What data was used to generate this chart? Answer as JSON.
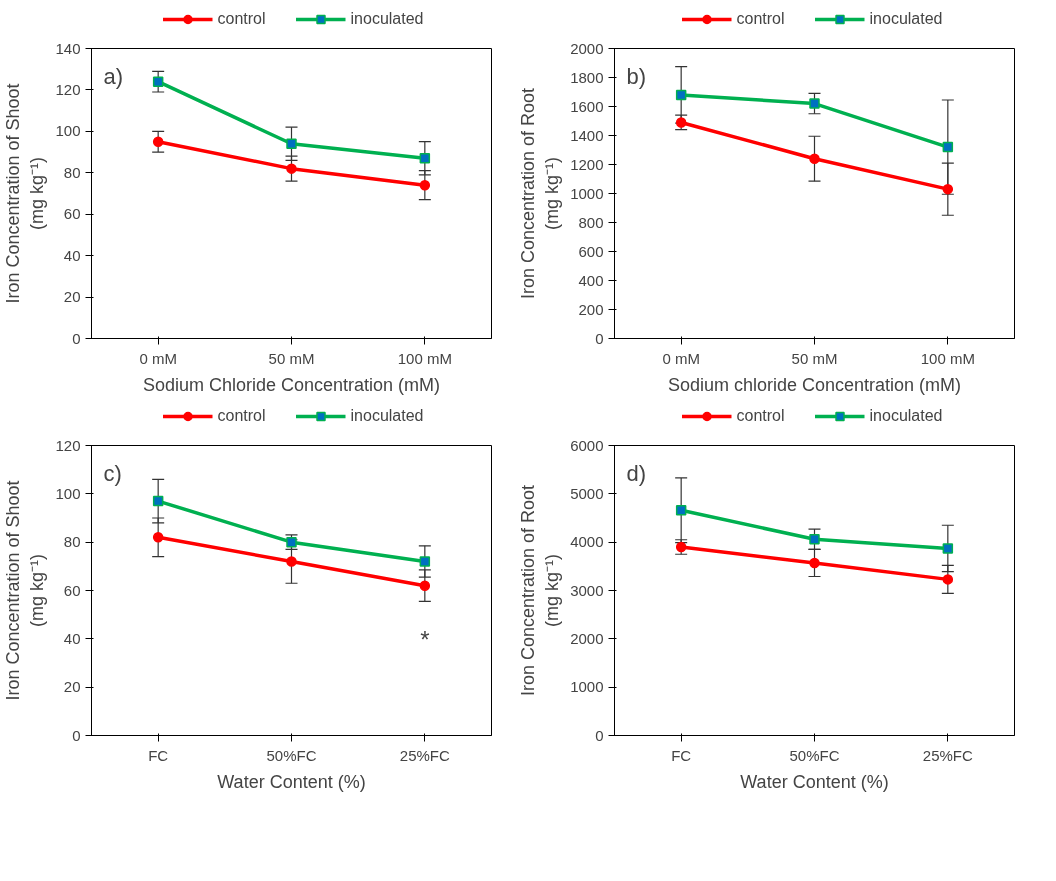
{
  "chart_data": [
    {
      "type": "line",
      "categories": [
        "0 mM",
        "50 mM",
        "100 mM"
      ],
      "xlabel": "Sodium Chloride Concentration (mM)",
      "ylabel": "Iron Concentration of Shoot\n(mg kg⁻¹)",
      "ylim": [
        0,
        140
      ],
      "yticks": [
        0,
        20,
        40,
        60,
        80,
        100,
        120,
        140
      ],
      "grid": false,
      "legend": "top",
      "annotations": [
        "a)"
      ],
      "series": [
        {
          "name": "control",
          "color": "#ff0000",
          "marker": "circle",
          "values": [
            95,
            82,
            74
          ],
          "errors": [
            5,
            6,
            7
          ]
        },
        {
          "name": "inoculated",
          "color": "#00b050",
          "marker": "square",
          "values": [
            124,
            94,
            87
          ],
          "errors": [
            5,
            8,
            8
          ]
        }
      ]
    },
    {
      "type": "line",
      "categories": [
        "0 mM",
        "50 mM",
        "100 mM"
      ],
      "xlabel": "Sodium chloride Concentration (mM)",
      "ylabel": "Iron Concentration of Root\n(mg kg⁻¹)",
      "ylim": [
        0,
        2000
      ],
      "yticks": [
        0,
        200,
        400,
        600,
        800,
        1000,
        1200,
        1400,
        1600,
        1800,
        2000
      ],
      "grid": false,
      "legend": "top",
      "annotations": [
        "b)"
      ],
      "series": [
        {
          "name": "control",
          "color": "#ff0000",
          "marker": "circle",
          "values": [
            1490,
            1240,
            1030
          ],
          "errors": [
            50,
            155,
            180
          ]
        },
        {
          "name": "inoculated",
          "color": "#00b050",
          "marker": "square",
          "values": [
            1680,
            1620,
            1320
          ],
          "errors": [
            195,
            70,
            325
          ]
        }
      ]
    },
    {
      "type": "line",
      "categories": [
        "FC",
        "50%FC",
        "25%FC"
      ],
      "xlabel": "Water Content (%)",
      "ylabel": "Iron Concentration of Shoot\n(mg kg⁻¹)",
      "ylim": [
        0,
        120
      ],
      "yticks": [
        0,
        20,
        40,
        60,
        80,
        100,
        120
      ],
      "grid": false,
      "legend": "top",
      "annotations": [
        "c)",
        "*"
      ],
      "series": [
        {
          "name": "control",
          "color": "#ff0000",
          "marker": "circle",
          "values": [
            82,
            72,
            62
          ],
          "errors": [
            8,
            9,
            6.5
          ]
        },
        {
          "name": "inoculated",
          "color": "#00b050",
          "marker": "square",
          "values": [
            97,
            80,
            72
          ],
          "errors": [
            9,
            3,
            6.5
          ]
        }
      ]
    },
    {
      "type": "line",
      "categories": [
        "FC",
        "50%FC",
        "25%FC"
      ],
      "xlabel": "Water Content (%)",
      "ylabel": "Iron Concentration of Root\n(mg kg⁻¹)",
      "ylim": [
        0,
        6000
      ],
      "yticks": [
        0,
        1000,
        2000,
        3000,
        4000,
        5000,
        6000
      ],
      "grid": false,
      "legend": "top",
      "annotations": [
        "d)"
      ],
      "series": [
        {
          "name": "control",
          "color": "#ff0000",
          "marker": "circle",
          "values": [
            3900,
            3570,
            3230
          ],
          "errors": [
            150,
            280,
            290
          ]
        },
        {
          "name": "inoculated",
          "color": "#00b050",
          "marker": "square",
          "values": [
            4660,
            4060,
            3870
          ],
          "errors": [
            670,
            210,
            480
          ]
        }
      ]
    }
  ]
}
